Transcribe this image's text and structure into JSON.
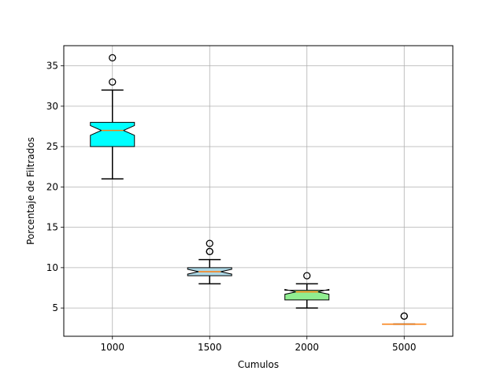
{
  "chart_data": {
    "type": "boxplot",
    "xlabel": "Cumulos",
    "ylabel": "Porcentaje de Filtrados",
    "ylim": [
      1.5,
      37.5
    ],
    "yticks": [
      5,
      10,
      15,
      20,
      25,
      30,
      35
    ],
    "grid": true,
    "notched": true,
    "categories": [
      "1000",
      "1500",
      "2000",
      "5000"
    ],
    "boxes": [
      {
        "category": "1000",
        "whisker_low": 21,
        "q1": 25,
        "median": 27,
        "q3": 28,
        "whisker_high": 32,
        "outliers": [
          33,
          36
        ],
        "notch_low": 26.4,
        "notch_high": 27.6,
        "color": "#00ffff"
      },
      {
        "category": "1500",
        "whisker_low": 8,
        "q1": 9,
        "median": 9.5,
        "q3": 10,
        "whisker_high": 11,
        "outliers": [
          12,
          12,
          13
        ],
        "notch_low": 9.2,
        "notch_high": 9.8,
        "color": "#add8e6"
      },
      {
        "category": "2000",
        "whisker_low": 5,
        "q1": 6,
        "median": 7,
        "q3": 7.2,
        "whisker_high": 8,
        "outliers": [
          9
        ],
        "notch_low": 6.7,
        "notch_high": 7.3,
        "color": "#90ee90"
      },
      {
        "category": "5000",
        "whisker_low": 3,
        "q1": 3,
        "median": 3,
        "q3": 3,
        "whisker_high": 3,
        "outliers": [
          4,
          4
        ],
        "notch_low": 3,
        "notch_high": 3,
        "color": "#ffa500"
      }
    ],
    "colors": {
      "median": "#ff7f0e",
      "grid": "#b0b0b0",
      "edge": "#000000"
    }
  }
}
